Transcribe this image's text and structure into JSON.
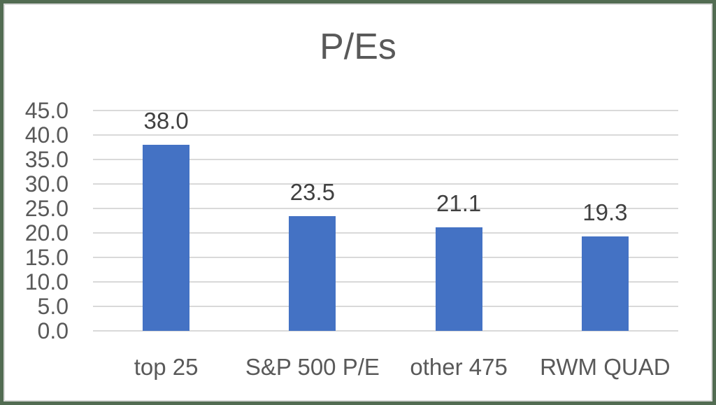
{
  "frame": {
    "border_color": "#526C52",
    "chart_border_color": "#d9d9d9",
    "background": "#ffffff"
  },
  "chart_data": {
    "type": "bar",
    "title": "P/Es",
    "categories": [
      "top 25",
      "S&P 500 P/E",
      "other 475",
      "RWM QUAD"
    ],
    "values": [
      38.0,
      23.5,
      21.1,
      19.3
    ],
    "data_labels": [
      "38.0",
      "23.5",
      "21.1",
      "19.3"
    ],
    "y_ticks": [
      "45.0",
      "40.0",
      "35.0",
      "30.0",
      "25.0",
      "20.0",
      "15.0",
      "10.0",
      "5.0",
      "0.0"
    ],
    "ylim": [
      0,
      45
    ],
    "xlabel": "",
    "ylabel": "",
    "grid": true,
    "legend": "none",
    "bar_color": "#4472C4",
    "gridline_color": "#d9d9d9",
    "axis_text_color": "#595959",
    "data_label_color": "#404040",
    "title_color": "#595959"
  }
}
